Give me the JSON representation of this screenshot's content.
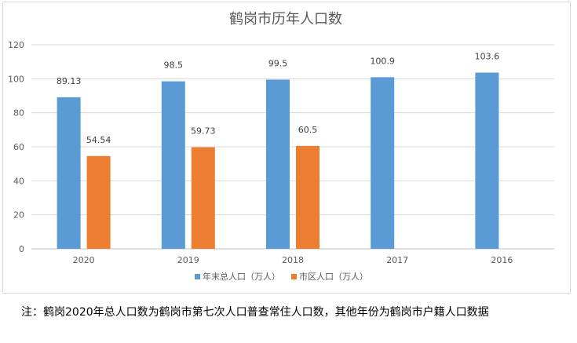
{
  "chart_data": {
    "type": "bar",
    "title": "鹤岗市历年人口数",
    "categories": [
      "2020",
      "2019",
      "2018",
      "2017",
      "2016"
    ],
    "series": [
      {
        "name": "年末总人口（万人）",
        "color": "#5b9bd5",
        "values": [
          89.13,
          98.5,
          99.5,
          100.9,
          103.6
        ],
        "labels": [
          "89.13",
          "98.5",
          "99.5",
          "100.9",
          "103.6"
        ]
      },
      {
        "name": "市区人口（万人）",
        "color": "#ed7d31",
        "values": [
          54.54,
          59.73,
          60.5,
          null,
          null
        ],
        "labels": [
          "54.54",
          "59.73",
          "60.5",
          null,
          null
        ]
      }
    ],
    "ylim": [
      0,
      120
    ],
    "yticks": [
      "0",
      "20",
      "40",
      "60",
      "80",
      "100",
      "120"
    ],
    "grid": true,
    "legend": "bottom"
  },
  "footnote": "注：鹤岗2020年总人口数为鹤岗市第七次人口普查常住人口数，其他年份为鹤岗市户籍人口数据"
}
